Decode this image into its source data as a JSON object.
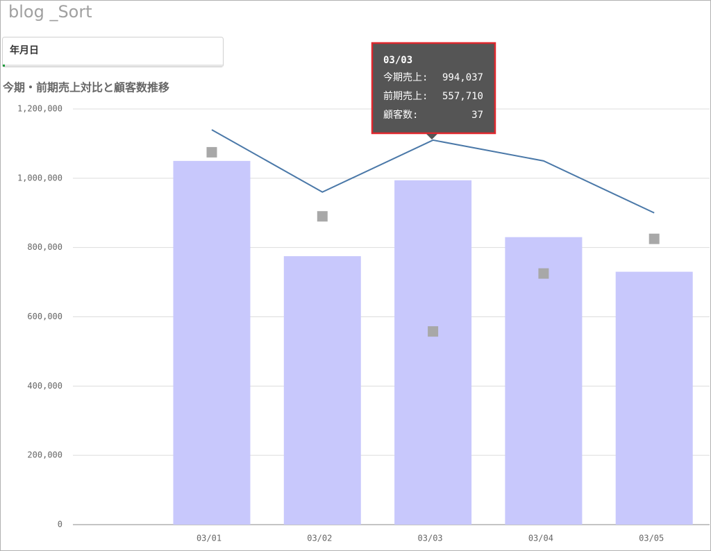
{
  "header": {
    "title": "blog _Sort"
  },
  "filter": {
    "label": "年月日"
  },
  "chart_data": {
    "type": "combo",
    "title": "今期・前期売上対比と顧客数推移",
    "categories": [
      "03/01",
      "03/02",
      "03/03",
      "03/04",
      "03/05"
    ],
    "series": [
      {
        "type": "bar",
        "color": "#c8c8fc",
        "values": [
          1050000,
          775000,
          994037,
          830000,
          730000
        ]
      },
      {
        "type": "scatter",
        "color": "#a8a8a8",
        "values": [
          1075000,
          890000,
          557710,
          725000,
          825000
        ]
      },
      {
        "type": "line",
        "color": "#4a78a8",
        "axis": "y2",
        "values": [
          38,
          32,
          37,
          35,
          30
        ]
      }
    ],
    "ylim": [
      0,
      1200000
    ],
    "yticks": [
      0,
      {
        "value": 200000,
        "label": "200,000"
      },
      {
        "value": 400000,
        "label": "400,000"
      },
      {
        "value": 600000,
        "label": "600,000"
      },
      {
        "value": 800000,
        "label": "800,000"
      },
      {
        "value": 1000000,
        "label": "1,000,000"
      },
      {
        "value": 1200000,
        "label": "1,200,000"
      }
    ],
    "y2lim": [
      0,
      40
    ],
    "grid": true,
    "tooltip": {
      "rows": [
        {
          "label": "今期売上:",
          "value": "994,037"
        },
        {
          "label": "前期売上:",
          "value": "557,710"
        },
        {
          "label": "顧客数:",
          "value": "37"
        }
      ]
    }
  }
}
